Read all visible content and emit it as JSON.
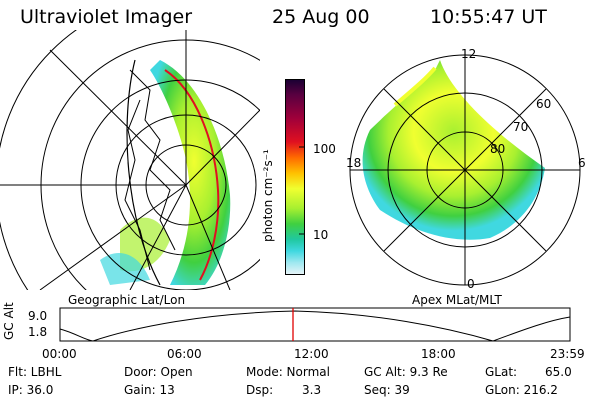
{
  "header": {
    "title": "Ultraviolet Imager",
    "date": "25 Aug 00",
    "time": "10:55:47 UT"
  },
  "left_panel": {
    "label": "Geographic Lat/Lon"
  },
  "right_panel": {
    "label": "Apex MLat/MLT",
    "mlt_labels": [
      "12",
      "6",
      "0",
      "18"
    ],
    "mlat_labels": [
      "60",
      "70",
      "80"
    ]
  },
  "colorbar": {
    "label": "photon cm⁻²s⁻¹",
    "tick_labels": [
      "100",
      "10"
    ],
    "colors": [
      "#1a0033",
      "#5a0040",
      "#a0003a",
      "#e01020",
      "#ff6a00",
      "#ffc000",
      "#f0ff30",
      "#a8f030",
      "#40d040",
      "#20c8a0",
      "#40d8e0",
      "#a0e8f0",
      "#e8f4f8"
    ]
  },
  "altitude_plot": {
    "ylabel": "GC Alt",
    "y_ticks": [
      "9.0",
      "1.8"
    ],
    "x_ticks": [
      "00:00",
      "06:00",
      "12:00",
      "18:00",
      "23:59"
    ],
    "current_marker_color": "#e00000"
  },
  "footer": {
    "flt": "Flt: LBHL",
    "ip": "IP: 36.0",
    "door": "Door: Open",
    "gain": "Gain: 13",
    "mode": "Mode: Normal",
    "dsp_label": "Dsp:",
    "dsp_value": "3.3",
    "gcalt": "GC Alt: 9.3 Re",
    "seq": "Seq: 39",
    "glat": "GLat:",
    "glat_value": "65.0",
    "glon": "GLon: 216.2"
  }
}
